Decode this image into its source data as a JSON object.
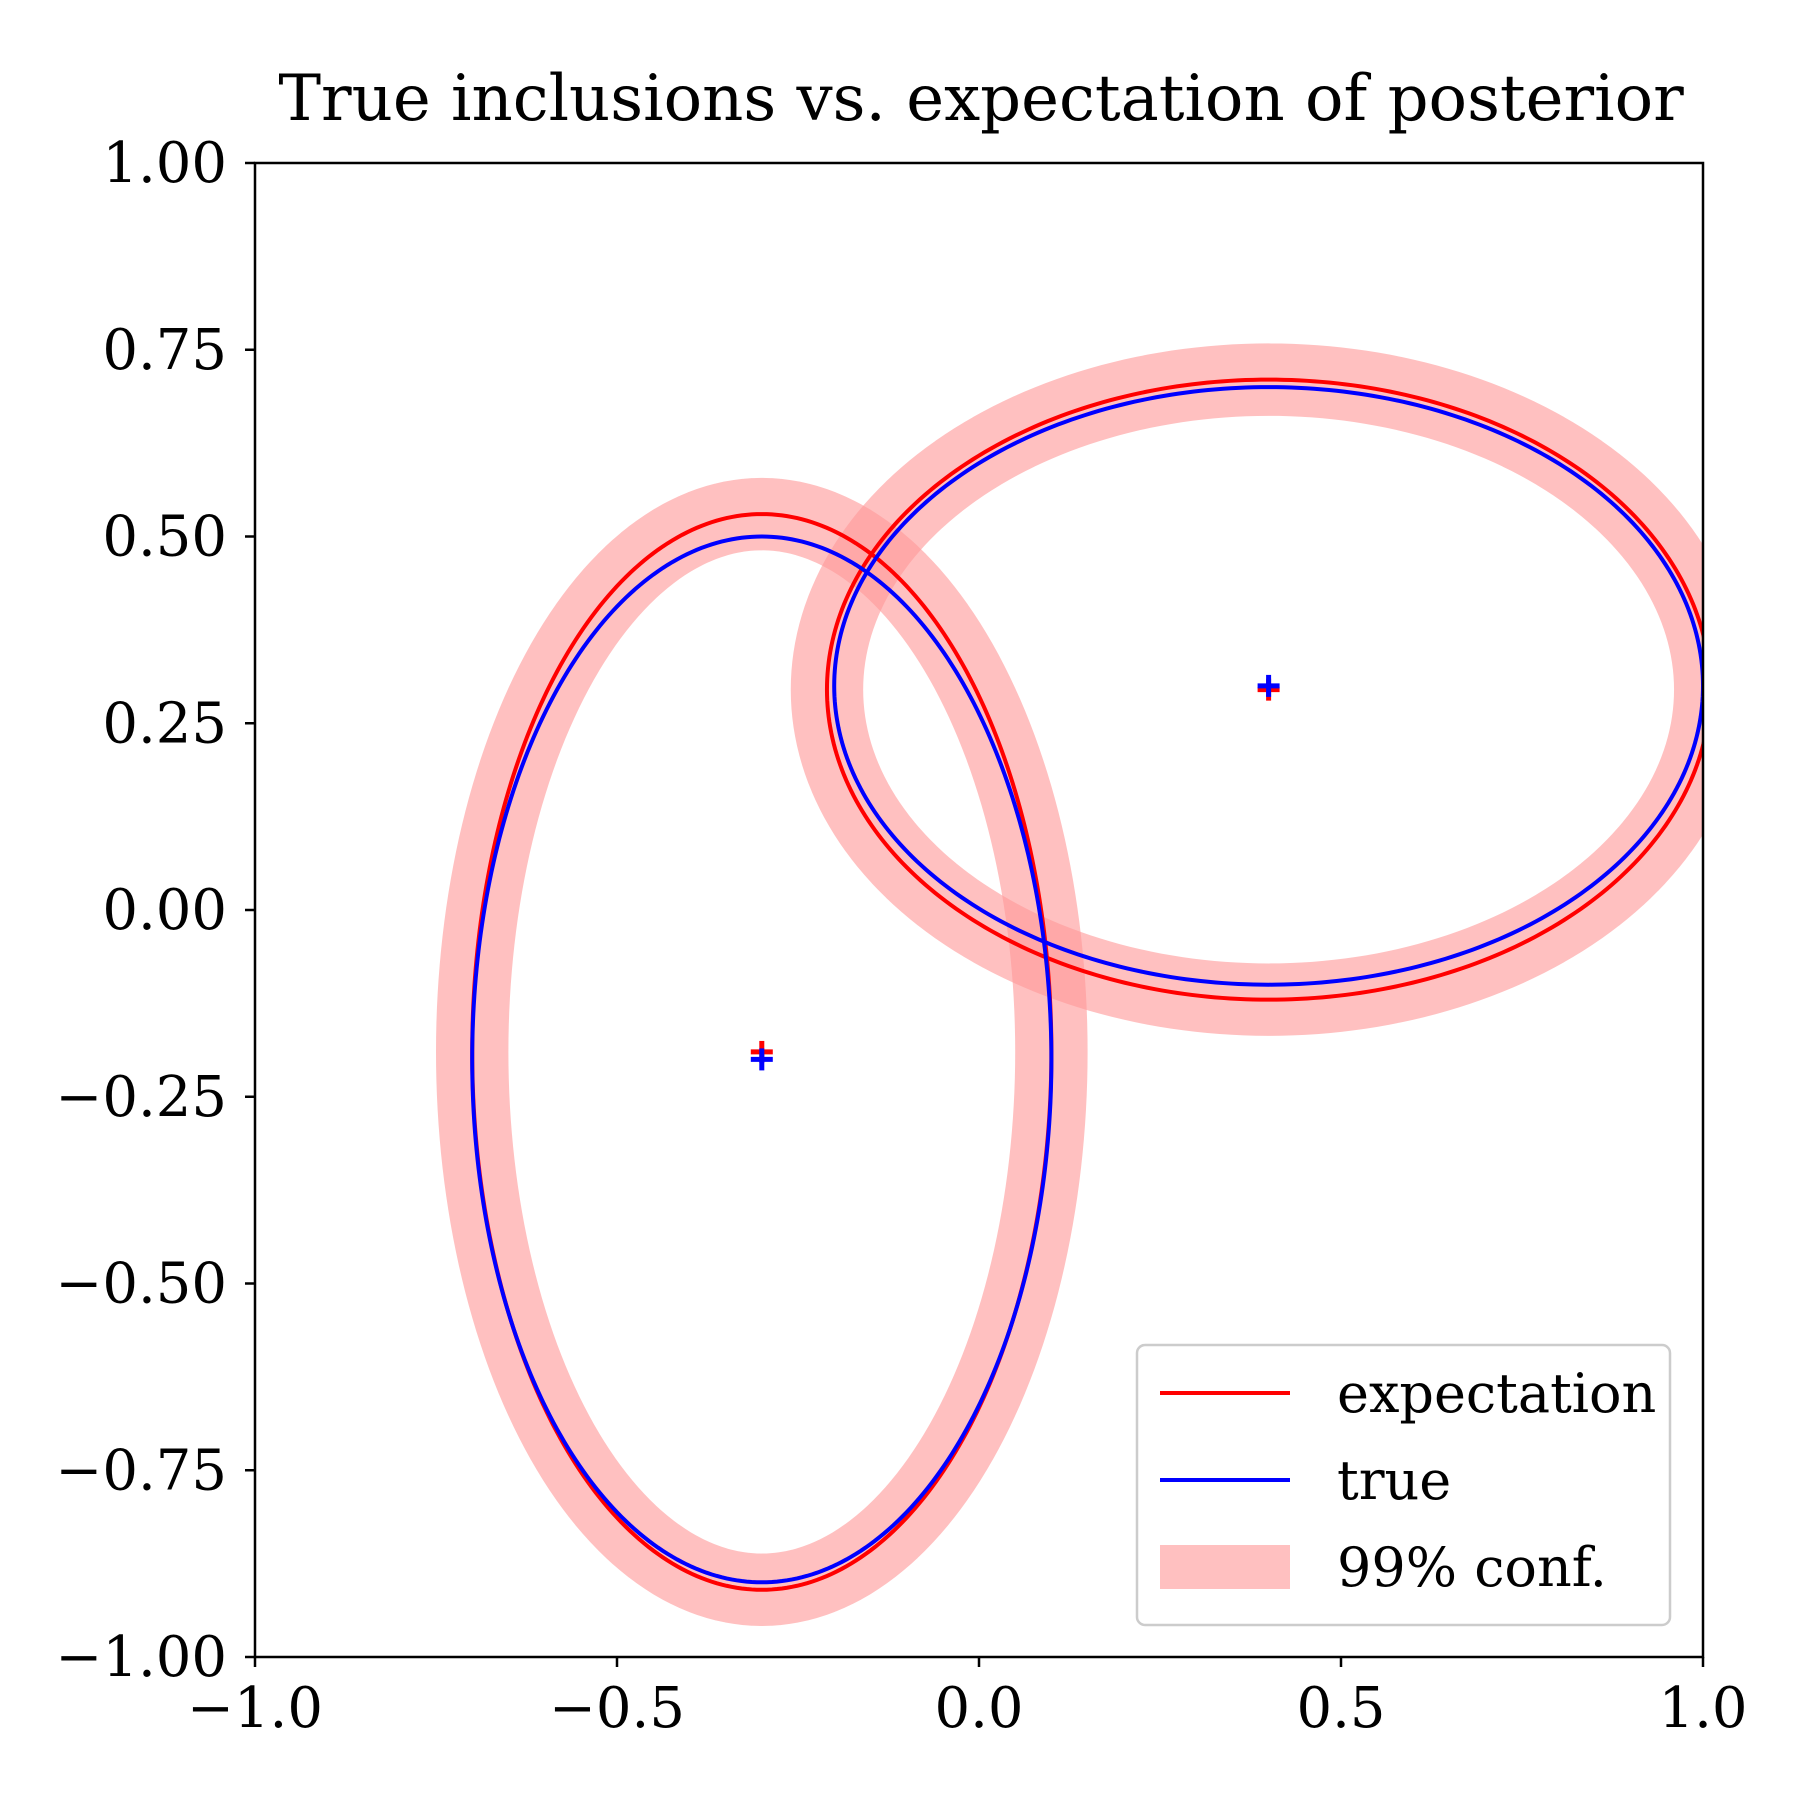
{
  "chart_data": {
    "type": "line",
    "title": "True inclusions vs. expectation of posterior",
    "xlabel": "",
    "ylabel": "",
    "xlim": [
      -1.0,
      1.0
    ],
    "ylim": [
      -1.0,
      1.0
    ],
    "x_ticks": [
      -1.0,
      -0.5,
      0.0,
      0.5,
      1.0
    ],
    "x_tick_labels": [
      "−1.0",
      "−0.5",
      "0.0",
      "0.5",
      "1.0"
    ],
    "y_ticks": [
      1.0,
      0.75,
      0.5,
      0.25,
      0.0,
      -0.25,
      -0.5,
      -0.75,
      -1.0
    ],
    "y_tick_labels": [
      "1.00",
      "0.75",
      "0.50",
      "0.25",
      "0.00",
      "−0.25",
      "−0.50",
      "−0.75",
      "−1.00"
    ],
    "grid": false,
    "legend_position": "lower-right",
    "series": [
      {
        "name": "expectation",
        "color": "#ff0000",
        "ellipses": [
          {
            "center": [
              -0.3,
              -0.19
            ],
            "semi_axis_x": 0.4,
            "semi_axis_y": 0.72
          },
          {
            "center": [
              0.4,
              0.295
            ],
            "semi_axis_x": 0.61,
            "semi_axis_y": 0.415
          }
        ]
      },
      {
        "name": "true",
        "color": "#0000ff",
        "ellipses": [
          {
            "center": [
              -0.3,
              -0.2
            ],
            "semi_axis_x": 0.4,
            "semi_axis_y": 0.7
          },
          {
            "center": [
              0.4,
              0.3
            ],
            "semi_axis_x": 0.6,
            "semi_axis_y": 0.4
          }
        ]
      },
      {
        "name": "99% conf.",
        "color": "#ff9999",
        "band_halfwidth": 0.05,
        "ellipses": [
          {
            "center": [
              -0.3,
              -0.19
            ],
            "semi_axis_x": 0.4,
            "semi_axis_y": 0.72
          },
          {
            "center": [
              0.4,
              0.295
            ],
            "semi_axis_x": 0.61,
            "semi_axis_y": 0.415
          }
        ]
      }
    ]
  }
}
